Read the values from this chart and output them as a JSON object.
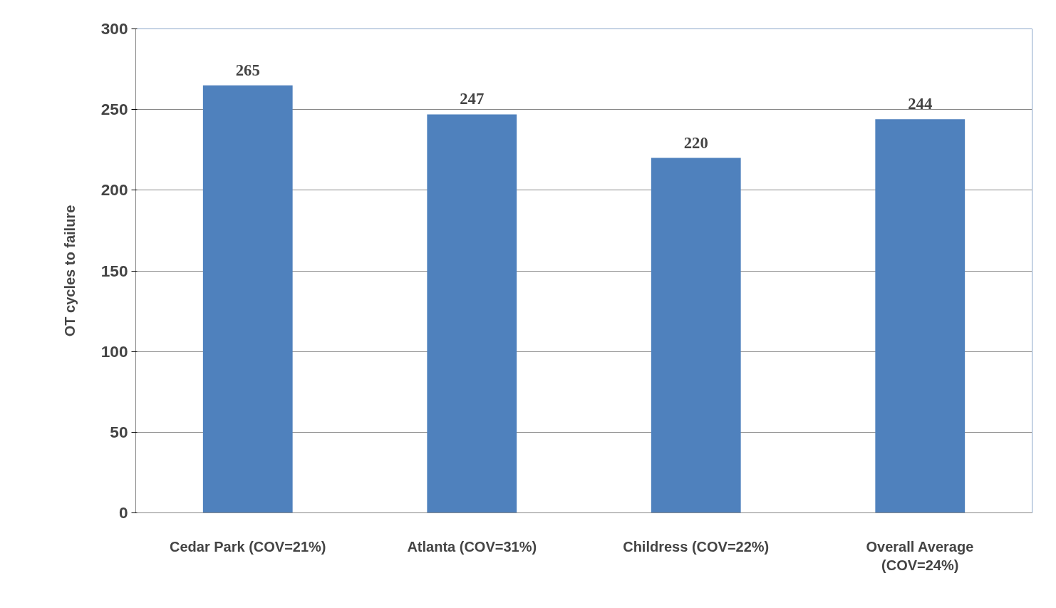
{
  "chart_data": {
    "type": "bar",
    "ylabel": "OT cycles to failure",
    "categories": [
      "Cedar Park (COV=21%)",
      "Atlanta (COV=31%)",
      "Childress (COV=22%)",
      "Overall Average\n(COV=24%)"
    ],
    "values": [
      265,
      247,
      220,
      244
    ],
    "color": "#4f81bd",
    "ylim": [
      0,
      300
    ],
    "yticks": [
      0,
      50,
      100,
      150,
      200,
      250,
      300
    ],
    "grid": "y",
    "data_labels": true
  }
}
